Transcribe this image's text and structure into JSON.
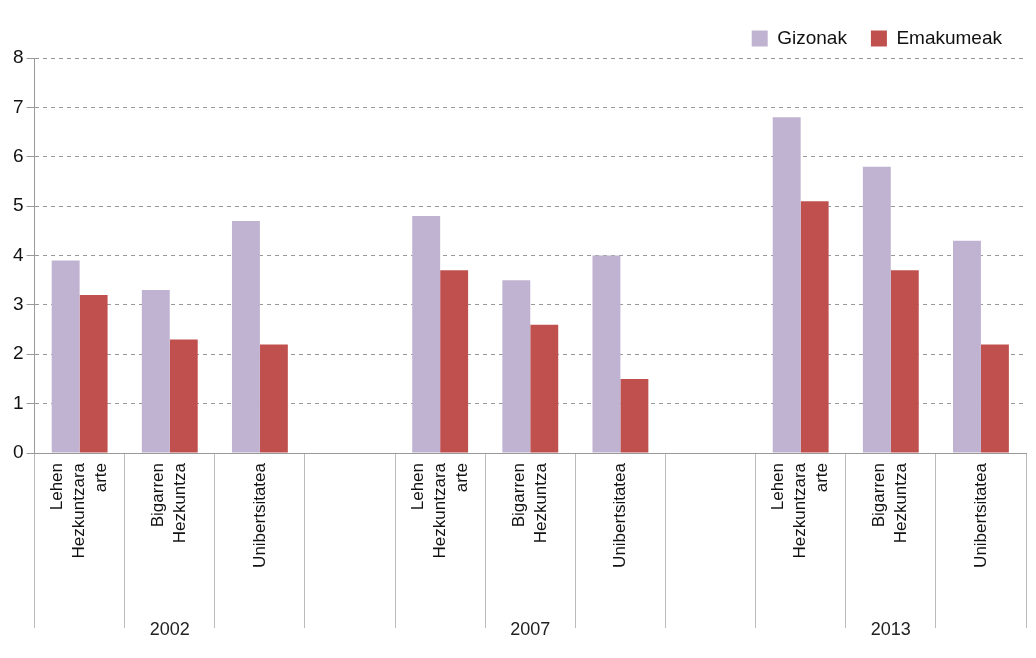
{
  "chart_data": {
    "type": "bar",
    "categories": [
      "Lehen Hezkuntzara arte",
      "Bigarren Hezkuntza",
      "Unibertsitatea",
      null,
      "Lehen Hezkuntzara arte",
      "Bigarren Hezkuntza",
      "Unibertsitatea",
      null,
      "Lehen Hezkuntzara arte",
      "Bigarren Hezkuntza",
      "Unibertsitatea"
    ],
    "series": [
      {
        "name": "Gizonak",
        "color": "#c0b3d1",
        "values": [
          3.9,
          3.3,
          4.7,
          null,
          4.8,
          3.5,
          4.0,
          null,
          6.8,
          5.8,
          4.3
        ]
      },
      {
        "name": "Emakumeak",
        "color": "#c0504d",
        "values": [
          3.2,
          2.3,
          2.2,
          null,
          3.7,
          2.6,
          1.5,
          null,
          5.1,
          3.7,
          2.2
        ]
      }
    ],
    "ylim": [
      0,
      8
    ],
    "yticks": [
      0,
      1,
      2,
      3,
      4,
      5,
      6,
      7,
      8
    ],
    "grid": "y",
    "legend": "top right",
    "annotations": [
      "2002",
      "2007",
      "2013"
    ]
  }
}
